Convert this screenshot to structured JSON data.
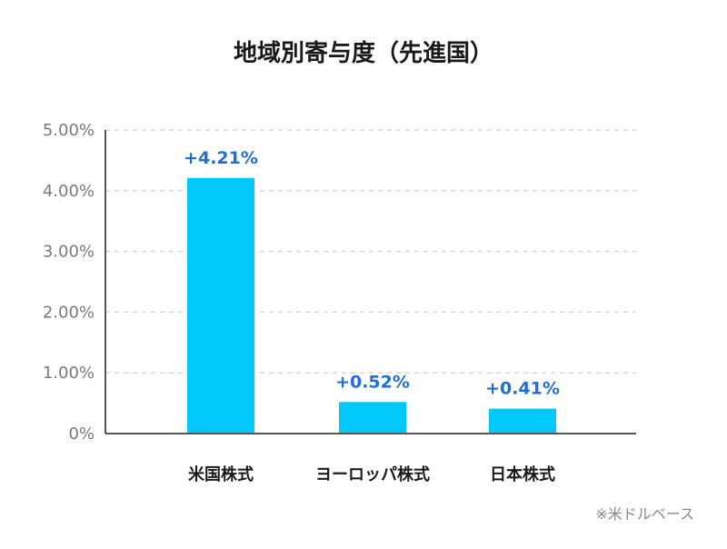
{
  "chart_data": {
    "type": "bar",
    "title": "地域別寄与度（先進国）",
    "categories": [
      "米国株式",
      "ヨーロッパ株式",
      "日本株式"
    ],
    "values": [
      4.21,
      0.52,
      0.41
    ],
    "data_labels": [
      "+4.21%",
      "+0.52%",
      "+0.41%"
    ],
    "yticks": [
      0,
      1,
      2,
      3,
      4,
      5
    ],
    "ytick_labels": [
      "0%",
      "1.00%",
      "2.00%",
      "3.00%",
      "4.00%",
      "5.00%"
    ],
    "ylim": [
      0,
      5
    ],
    "xlabel": "",
    "ylabel": "",
    "grid": true,
    "note": "※米ドルベース",
    "colors": {
      "bar": "#00c8f8",
      "data_label": "#1f6fd6",
      "grid": "#d9d9d9",
      "axis": "#555555"
    }
  }
}
